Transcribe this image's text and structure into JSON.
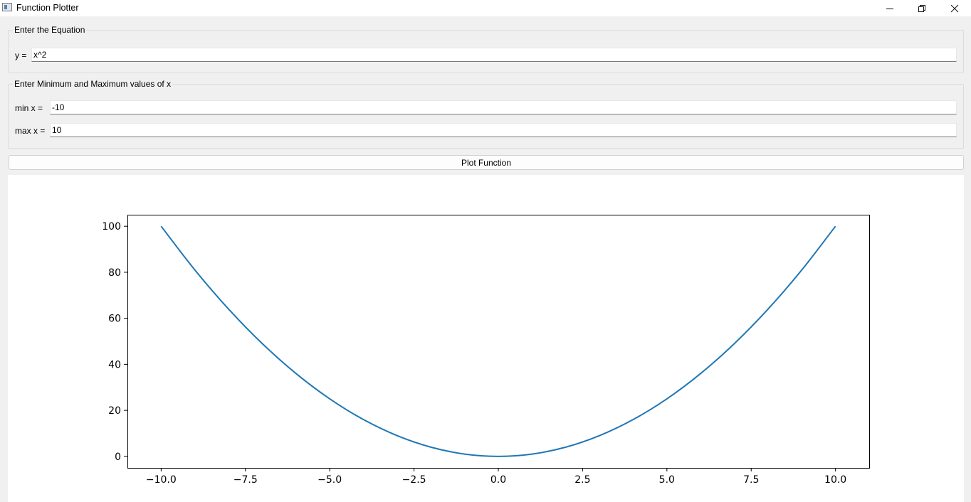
{
  "window": {
    "title": "Function Plotter",
    "controls": [
      "minimize-icon",
      "restore-icon",
      "close-icon"
    ]
  },
  "equation_group": {
    "title": "Enter the Equation",
    "label": "y =",
    "value": "x^2"
  },
  "range_group": {
    "title": "Enter Minimum and Maximum values of x",
    "min_label": "min x =",
    "min_value": "-10",
    "max_label": "max x =",
    "max_value": "10"
  },
  "plot_button": {
    "label": "Plot Function"
  },
  "chart_data": {
    "type": "line",
    "title": "",
    "xlabel": "",
    "ylabel": "",
    "xlim": [
      -11,
      11
    ],
    "ylim": [
      -5,
      105
    ],
    "x_ticks": [
      -10.0,
      -7.5,
      -5.0,
      -2.5,
      0.0,
      2.5,
      5.0,
      7.5,
      10.0
    ],
    "x_tick_labels": [
      "−10.0",
      "−7.5",
      "−5.0",
      "−2.5",
      "0.0",
      "2.5",
      "5.0",
      "7.5",
      "10.0"
    ],
    "y_ticks": [
      0,
      20,
      40,
      60,
      80,
      100
    ],
    "y_tick_labels": [
      "0",
      "20",
      "40",
      "60",
      "80",
      "100"
    ],
    "grid": false,
    "legend": "none",
    "series": [
      {
        "color": "#1f77b4",
        "x": [
          -10,
          -9,
          -8,
          -7,
          -6,
          -5,
          -4,
          -3,
          -2,
          -1,
          0,
          1,
          2,
          3,
          4,
          5,
          6,
          7,
          8,
          9,
          10
        ],
        "y": [
          100,
          81,
          64,
          49,
          36,
          25,
          16,
          9,
          4,
          1,
          0,
          1,
          4,
          9,
          16,
          25,
          36,
          49,
          64,
          81,
          100
        ]
      }
    ]
  }
}
